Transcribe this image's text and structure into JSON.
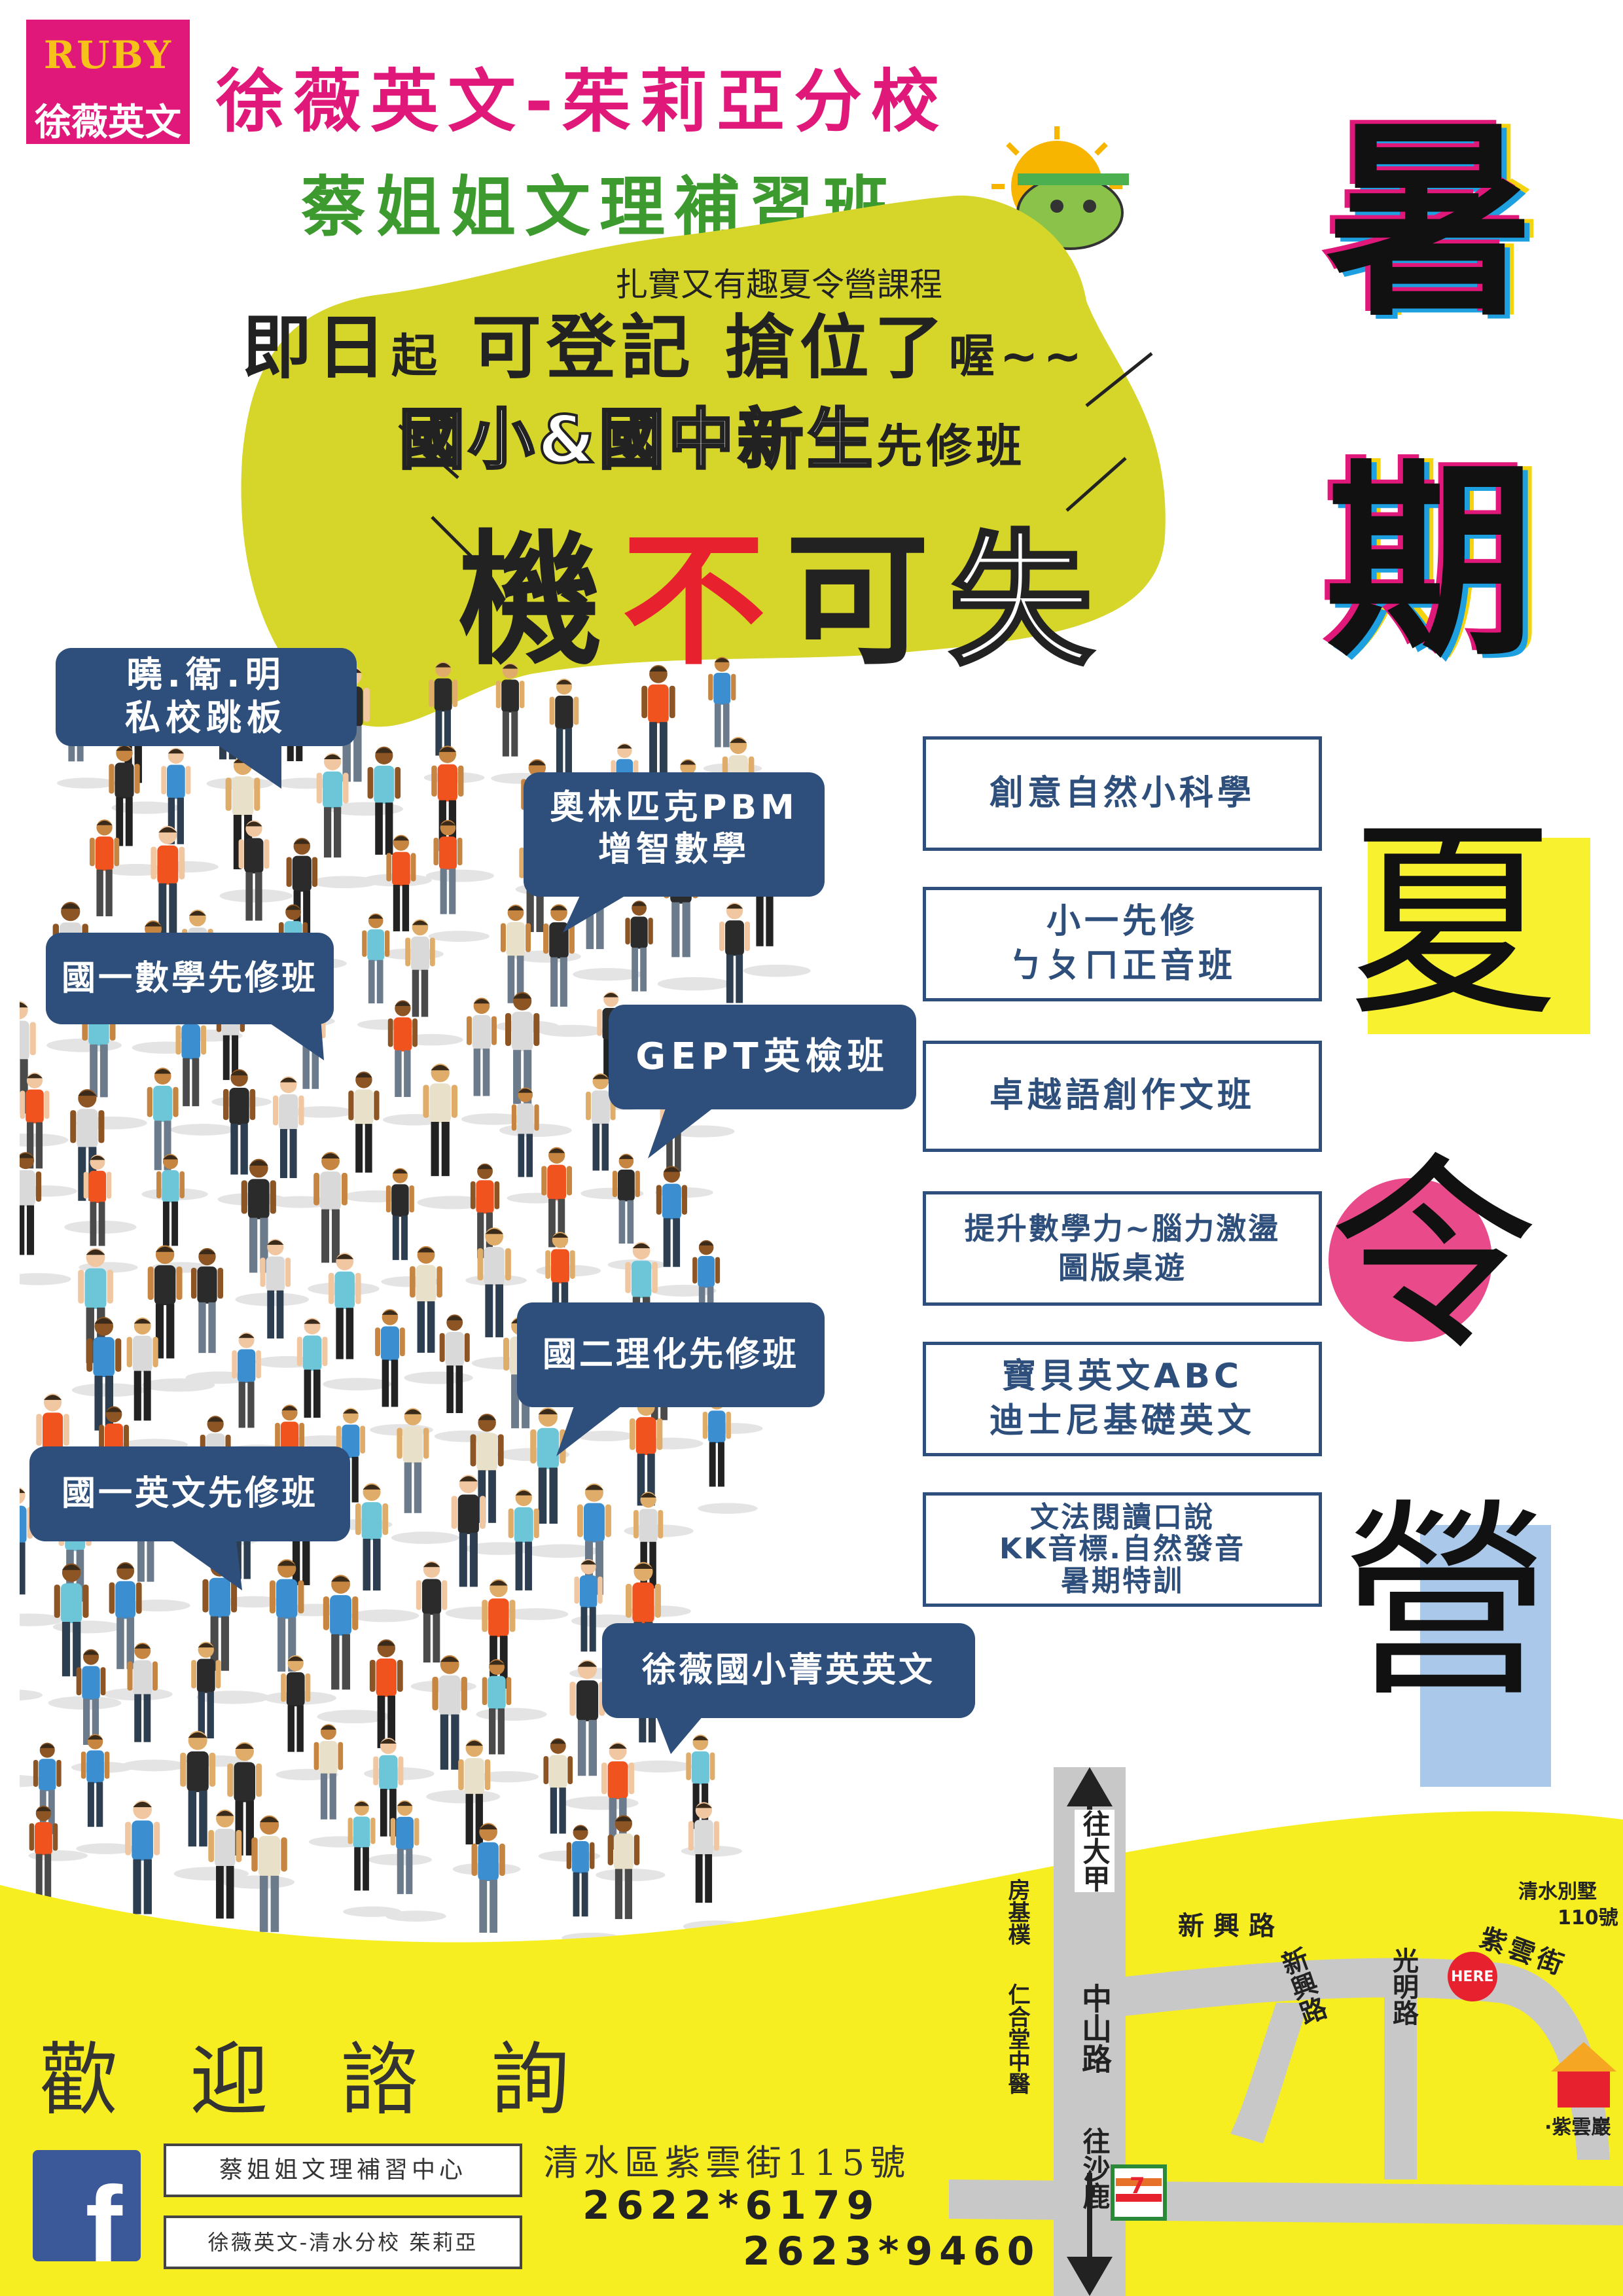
{
  "header": {
    "logo_brand": "RUBY",
    "logo_name": "徐薇英文",
    "title_line1": "徐薇英文-茱莉亞分校",
    "title_line2": "蔡姐姐文理補習班"
  },
  "promo": {
    "camp_sub": "扎實又有趣夏令營課程",
    "register_a": "即日",
    "register_b": "起",
    "register_c": " 可登記 搶位了",
    "register_d": "喔~~",
    "new_students_a": "國小&國中新生",
    "new_students_b": "先修班",
    "chance_1": "機",
    "chance_2": "不",
    "chance_3": "可",
    "chance_4": "失"
  },
  "vertical_title": [
    "暑",
    "期",
    "夏",
    "令",
    "營"
  ],
  "bubbles": {
    "b1_l1": "曉.衛.明",
    "b1_l2": "私校跳板",
    "b2_l1": "奧林匹克PBM",
    "b2_l2": "增智數學",
    "b3": "國一數學先修班",
    "b4": "GEPT英檢班",
    "b5": "國二理化先修班",
    "b6": "國一英文先修班",
    "b7": "徐薇國小菁英英文"
  },
  "courses": {
    "c1_l1": "創意自然小科學",
    "c2_l1": "小一先修",
    "c2_l2": "ㄅㄆㄇ正音班",
    "c3_l1": "卓越語創作文班",
    "c4_l1": "提升數學力~腦力激盪",
    "c4_l2": "圖版桌遊",
    "c5_l1": "寶貝英文ABC",
    "c5_l2": "迪士尼基礎英文",
    "c6_l1": "文法閱讀口說",
    "c6_l2": "KK音標.自然發音",
    "c6_l3": "暑期特訓"
  },
  "contact": {
    "welcome": "歡迎諮詢",
    "fb_letter": "f",
    "name1": "蔡姐姐文理補習中心",
    "name2": "徐薇英文-清水分校 茱莉亞",
    "address": "清水區紫雲街115號",
    "phone1": "2622*6179",
    "phone2": "2623*9460"
  },
  "map": {
    "to_dajia": "往大甲",
    "to_shalu": "往沙鹿",
    "zhongshan": "中山路",
    "xinxing": "新興路",
    "xinxing_v": "新興路",
    "guangming": "光明路",
    "ziyun_st": "紫雲街",
    "villa": "清水別墅",
    "villa_no": "110號",
    "here": "HERE",
    "fangjimo": "房基樸",
    "renhetang": "仁合堂中醫",
    "ziyunyan": "·紫雲巖",
    "seven_eleven": "7"
  },
  "colors": {
    "pink": "#e0187a",
    "green": "#3d9a2e",
    "yellow_green": "#d6d62a",
    "navy": "#2e4f7b",
    "map_yellow": "#f7ee22",
    "red": "#e8212e"
  }
}
